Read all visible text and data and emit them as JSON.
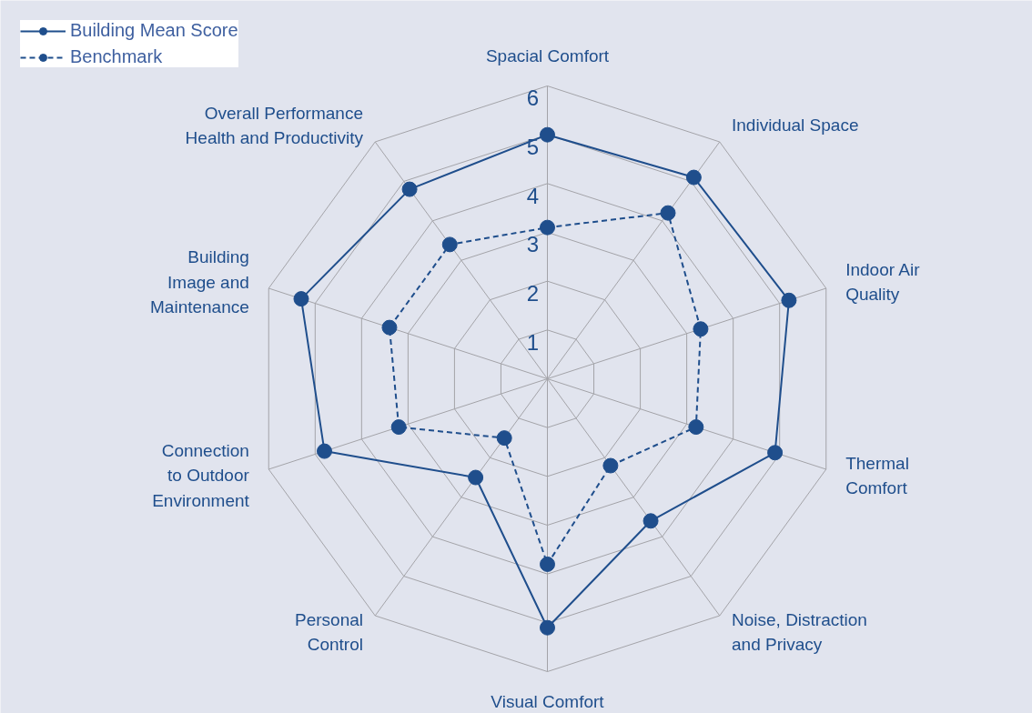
{
  "chart_data": {
    "type": "radar",
    "categories": [
      "Spacial Comfort",
      "Individual Space",
      "Indoor Air\nQuality",
      "Thermal\nComfort",
      "Noise, Distraction\nand Privacy",
      "Visual Comfort",
      "Personal\nControl",
      "Connection\nto Outdoor\nEnvironment",
      "Building\nImage and\nMaintenance",
      "Overall Performance\nHealth and Productivity"
    ],
    "series": [
      {
        "name": "Building Mean Score",
        "color": "#1f4e8c",
        "line_style": "solid",
        "values": [
          5.0,
          5.1,
          5.2,
          4.9,
          3.6,
          5.1,
          2.5,
          4.8,
          5.3,
          4.8
        ]
      },
      {
        "name": "Benchmark",
        "color": "#1f4e8c",
        "line_style": "dashed",
        "values": [
          3.1,
          4.2,
          3.3,
          3.2,
          2.2,
          3.8,
          1.5,
          3.2,
          3.4,
          3.4
        ]
      }
    ],
    "ylim": [
      0,
      6
    ],
    "yticks": [
      1,
      2,
      3,
      4,
      5,
      6
    ],
    "grid": true,
    "legend": "top left",
    "marker": "circle"
  }
}
